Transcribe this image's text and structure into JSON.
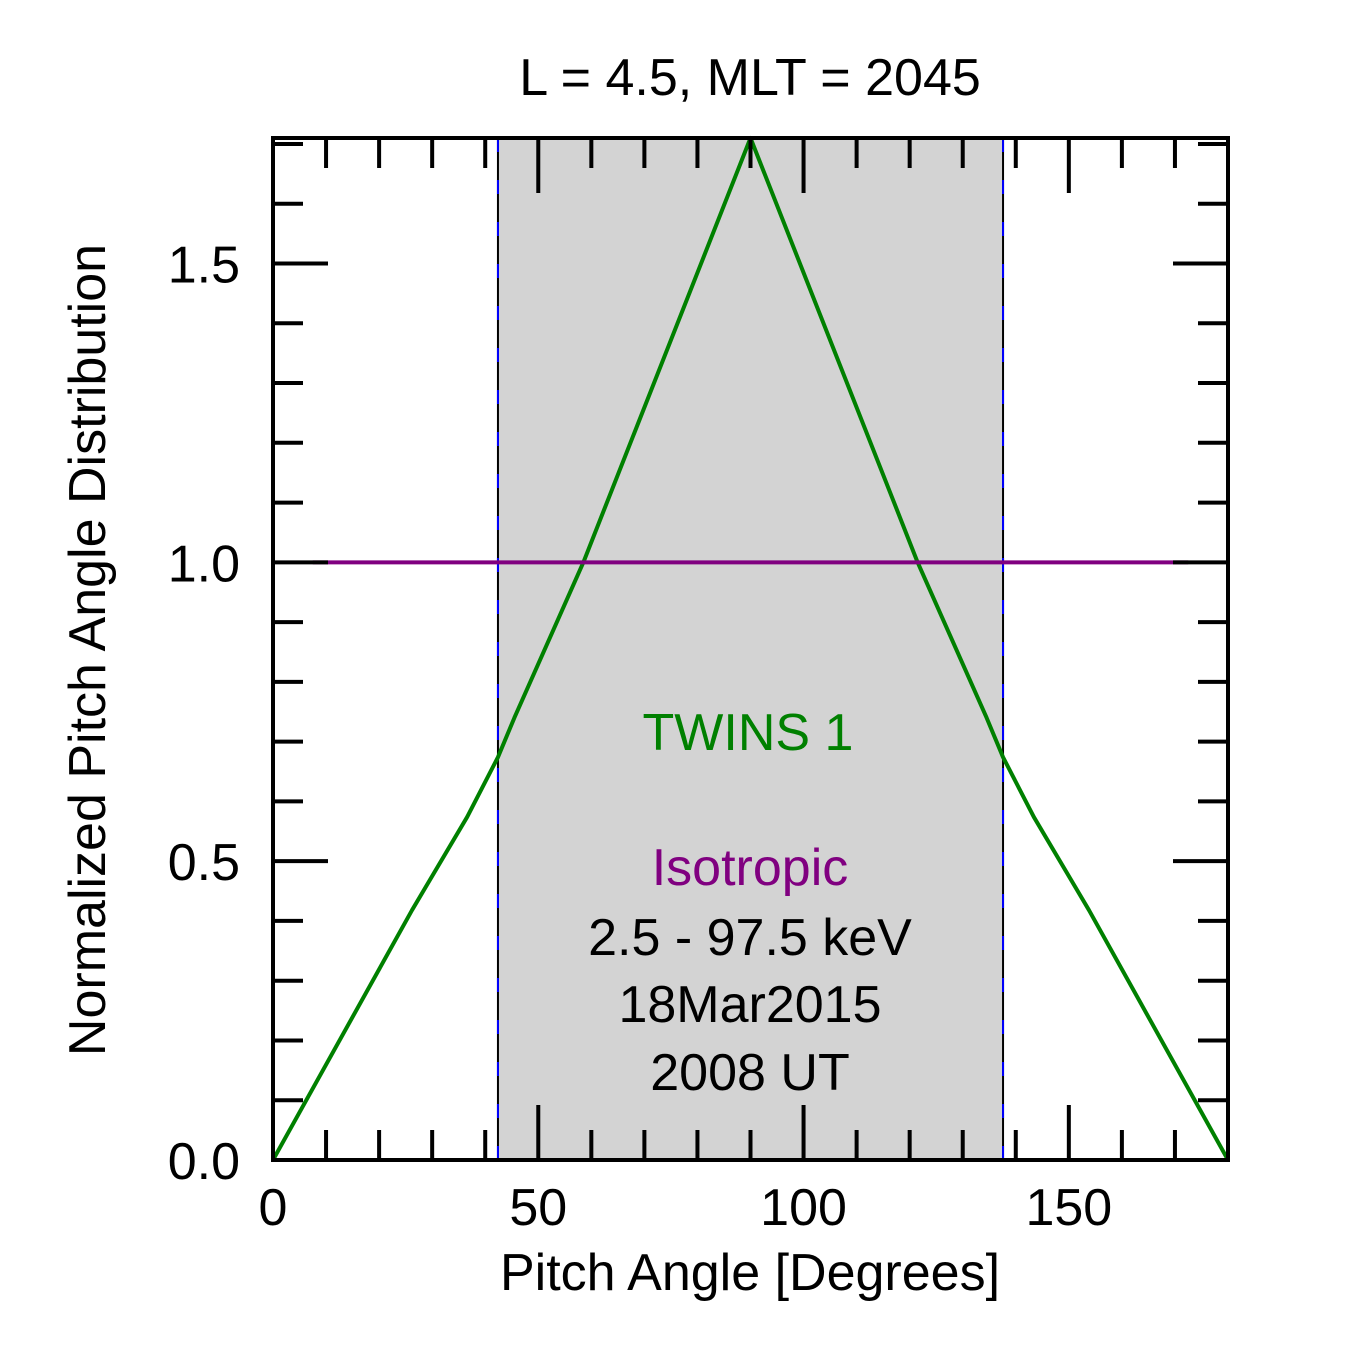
{
  "chart_data": {
    "type": "line",
    "title": "L =  4.5, MLT = 2045",
    "xlabel": "Pitch Angle [Degrees]",
    "ylabel": "Normalized Pitch Angle Distribution",
    "xlim": [
      0,
      180
    ],
    "ylim": [
      0,
      1.71
    ],
    "x_major_ticks": [
      0,
      50,
      100,
      150
    ],
    "x_tick_labels": [
      "0",
      "50",
      "100",
      "150"
    ],
    "x_minor_step": 10,
    "y_major_ticks": [
      0.0,
      0.5,
      1.0,
      1.5
    ],
    "y_tick_labels": [
      "0.0",
      "0.5",
      "1.0",
      "1.5"
    ],
    "y_minor_step": 0.1,
    "grid": false,
    "shaded_region": {
      "x": [
        42.4,
        137.6
      ],
      "color": "#d3d3d3"
    },
    "series": [
      {
        "name": "TWINS 1",
        "color": "#008000",
        "x": [
          0,
          26.2,
          36.6,
          42.4,
          45.5,
          58.5,
          90,
          121.5,
          134.5,
          137.6,
          143.4,
          153.8,
          180
        ],
        "y": [
          0,
          0.418,
          0.574,
          0.674,
          0.74,
          1.0,
          1.71,
          1.0,
          0.74,
          0.674,
          0.574,
          0.418,
          0
        ]
      },
      {
        "name": "Isotropic",
        "color": "#800080",
        "x": [
          7.5,
          172.5
        ],
        "y": [
          1.0,
          1.0
        ]
      }
    ],
    "annotations": [
      {
        "text": "TWINS 1",
        "color": "#008000"
      },
      {
        "text": "Isotropic",
        "color": "#800080"
      },
      {
        "text": "2.5 - 97.5 keV",
        "color": "#000000"
      },
      {
        "text": "18Mar2015",
        "color": "#000000"
      },
      {
        "text": "2008 UT",
        "color": "#000000"
      }
    ],
    "legend": "center"
  }
}
